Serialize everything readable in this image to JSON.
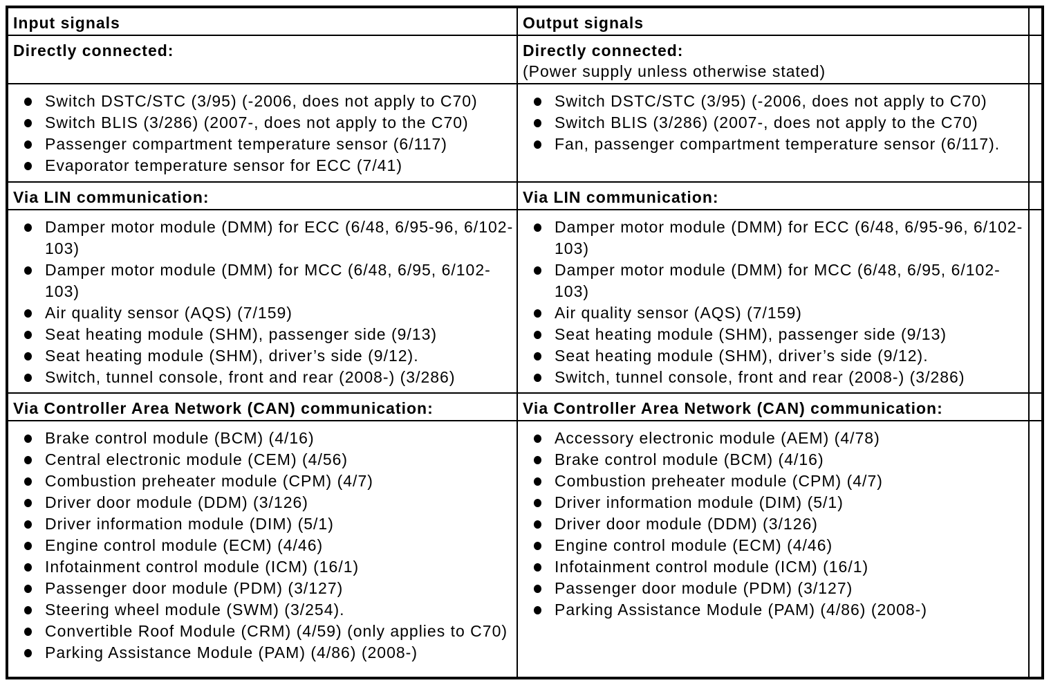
{
  "colors": {
    "background": "#ffffff",
    "border": "#000000",
    "text": "#000000",
    "bullet": "#000000"
  },
  "table": {
    "header": {
      "input": "Input signals",
      "output": "Output signals"
    },
    "sections": [
      {
        "heading_input": "Directly connected:",
        "heading_output": "Directly connected:",
        "note_output": "(Power supply unless otherwise stated)",
        "items_input": [
          "Switch DSTC/STC (3/95) (-2006, does not apply to C70)",
          "Switch BLIS (3/286) (2007-, does not apply to the C70)",
          "Passenger compartment temperature sensor (6/117)",
          "Evaporator temperature sensor for ECC (7/41)"
        ],
        "items_output": [
          "Switch DSTC/STC (3/95) (-2006, does not apply to C70)",
          "Switch BLIS (3/286) (2007-, does not apply to the C70)",
          "Fan, passenger compartment temperature sensor (6/117)."
        ]
      },
      {
        "heading_input": "Via LIN communication:",
        "heading_output": "Via LIN communication:",
        "note_output": "",
        "items_input": [
          "Damper motor module (DMM) for ECC (6/48, 6/95-96, 6/102-103)",
          "Damper motor module (DMM) for MCC (6/48, 6/95, 6/102-103)",
          "Air quality sensor (AQS) (7/159)",
          "Seat heating module (SHM), passenger side (9/13)",
          "Seat heating module (SHM), driver’s side (9/12).",
          "Switch, tunnel console, front and rear (2008-) (3/286)"
        ],
        "items_output": [
          "Damper motor module (DMM) for ECC (6/48, 6/95-96, 6/102-103)",
          "Damper motor module (DMM) for MCC (6/48, 6/95, 6/102-103)",
          "Air quality sensor (AQS) (7/159)",
          "Seat heating module (SHM), passenger side (9/13)",
          "Seat heating module (SHM), driver’s side (9/12).",
          "Switch, tunnel console, front and rear (2008-) (3/286)"
        ]
      },
      {
        "heading_input": "Via Controller Area Network (CAN) communication:",
        "heading_output": "Via Controller Area Network (CAN) communication:",
        "note_output": "",
        "items_input": [
          "Brake control module (BCM) (4/16)",
          "Central electronic module (CEM) (4/56)",
          "Combustion preheater module (CPM) (4/7)",
          "Driver door module (DDM) (3/126)",
          "Driver information module (DIM) (5/1)",
          "Engine control module (ECM) (4/46)",
          "Infotainment control module (ICM) (16/1)",
          "Passenger door module (PDM) (3/127)",
          "Steering wheel module (SWM) (3/254).",
          "Convertible Roof Module (CRM) (4/59) (only applies to C70)",
          "Parking Assistance Module (PAM) (4/86) (2008-)"
        ],
        "items_output": [
          "Accessory electronic module (AEM) (4/78)",
          "Brake control module (BCM) (4/16)",
          "Combustion preheater module (CPM) (4/7)",
          "Driver information module (DIM) (5/1)",
          "Driver door module (DDM) (3/126)",
          "Engine control module (ECM) (4/46)",
          "Infotainment control module (ICM) (16/1)",
          "Passenger door module (PDM) (3/127)",
          "Parking Assistance Module (PAM) (4/86) (2008-)"
        ]
      }
    ]
  }
}
